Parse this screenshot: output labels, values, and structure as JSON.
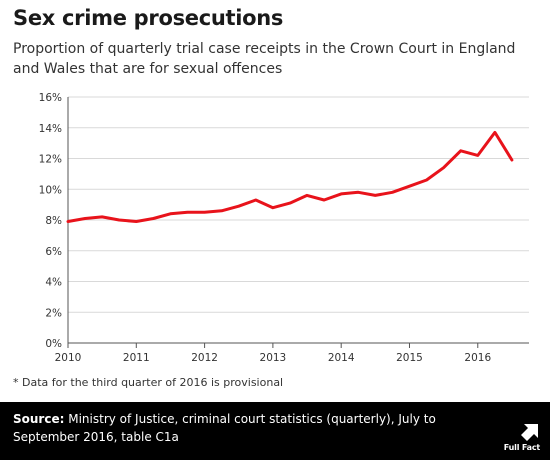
{
  "header": {
    "title": "Sex crime prosecutions",
    "subtitle": "Proportion of quarterly trial case receipts in the Crown Court in England and Wales that are for sexual offences"
  },
  "footnote": "* Data for the third quarter of 2016 is provisional",
  "source": {
    "label": "Source:",
    "text": "Ministry of Justice, criminal court statistics (quarterly), July to September 2016, table C1a"
  },
  "brand": {
    "text": "Full Fact",
    "icon": "full-fact-logo-icon"
  },
  "colors": {
    "line": "#e8131b",
    "grid": "#d9d9d9",
    "axis": "#555555",
    "footer_bg": "#000000",
    "footer_text": "#ffffff"
  },
  "chart_data": {
    "type": "line",
    "title": "Sex crime prosecutions",
    "subtitle": "Proportion of quarterly trial case receipts in the Crown Court in England and Wales that are for sexual offences",
    "xlabel": "",
    "ylabel": "",
    "x_ticks": [
      "2010",
      "2011",
      "2012",
      "2013",
      "2014",
      "2015",
      "2016"
    ],
    "y_ticks": [
      "0%",
      "2%",
      "4%",
      "6%",
      "8%",
      "10%",
      "12%",
      "14%",
      "16%"
    ],
    "ylim": [
      0,
      16
    ],
    "xlim": [
      2010,
      2016.75
    ],
    "grid": true,
    "legend": "none",
    "series": [
      {
        "color": "#e8131b",
        "x": [
          2010.0,
          2010.25,
          2010.5,
          2010.75,
          2011.0,
          2011.25,
          2011.5,
          2011.75,
          2012.0,
          2012.25,
          2012.5,
          2012.75,
          2013.0,
          2013.25,
          2013.5,
          2013.75,
          2014.0,
          2014.25,
          2014.5,
          2014.75,
          2015.0,
          2015.25,
          2015.5,
          2015.75,
          2016.0,
          2016.25,
          2016.5
        ],
        "values": [
          7.9,
          8.1,
          8.2,
          8.0,
          7.9,
          8.1,
          8.4,
          8.5,
          8.5,
          8.6,
          8.9,
          9.3,
          8.8,
          9.1,
          9.6,
          9.3,
          9.7,
          9.8,
          9.6,
          9.8,
          10.2,
          10.6,
          11.4,
          12.5,
          12.2,
          13.7,
          11.9
        ]
      }
    ]
  }
}
